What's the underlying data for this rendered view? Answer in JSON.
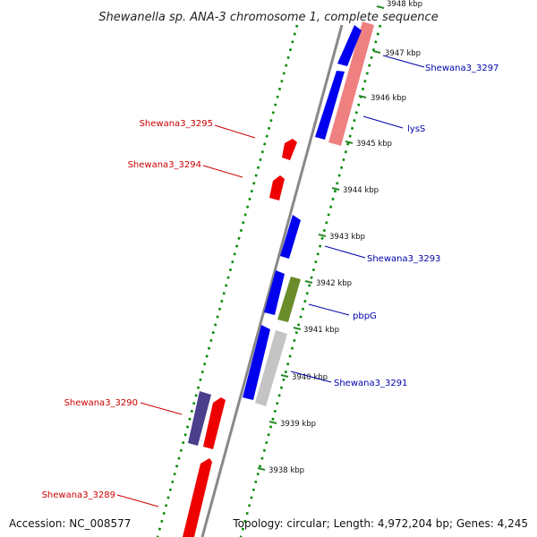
{
  "title": "Shewanella sp. ANA-3 chromosome 1, complete sequence",
  "accession_text": "Accession: NC_008577",
  "topology_text": "Topology: circular; Length: 4,972,204 bp; Genes: 4,245",
  "colors": {
    "backbone": "#888888",
    "forward_cds": "#0000ee",
    "reverse_cds": "#ee0000",
    "rrna": "#ef8080",
    "other": "#6a8c2a",
    "dark_cds": "#4a3f8a",
    "grey_cds": "#c4c4c4",
    "gc_dots": "#008800",
    "tick_marks": "#2a8a2a",
    "label_forward": "#0000aa",
    "label_reverse": "#cc0000"
  },
  "kbp_labels": [
    "3948 kbp",
    "3947 kbp",
    "3946 kbp",
    "3945 kbp",
    "3944 kbp",
    "3943 kbp",
    "3942 kbp",
    "3941 kbp",
    "3940 kbp",
    "3939 kbp",
    "3938 kbp"
  ],
  "gene_labels": [
    {
      "text": "Shewana3_3297",
      "strand": "forward"
    },
    {
      "text": "lysS",
      "strand": "forward"
    },
    {
      "text": "Shewana3_3295",
      "strand": "reverse"
    },
    {
      "text": "Shewana3_3294",
      "strand": "reverse"
    },
    {
      "text": "Shewana3_3293",
      "strand": "forward"
    },
    {
      "text": "pbpG",
      "strand": "forward"
    },
    {
      "text": "Shewana3_3291",
      "strand": "forward"
    },
    {
      "text": "Shewana3_3290",
      "strand": "reverse"
    },
    {
      "text": "Shewana3_3289",
      "strand": "reverse"
    }
  ]
}
